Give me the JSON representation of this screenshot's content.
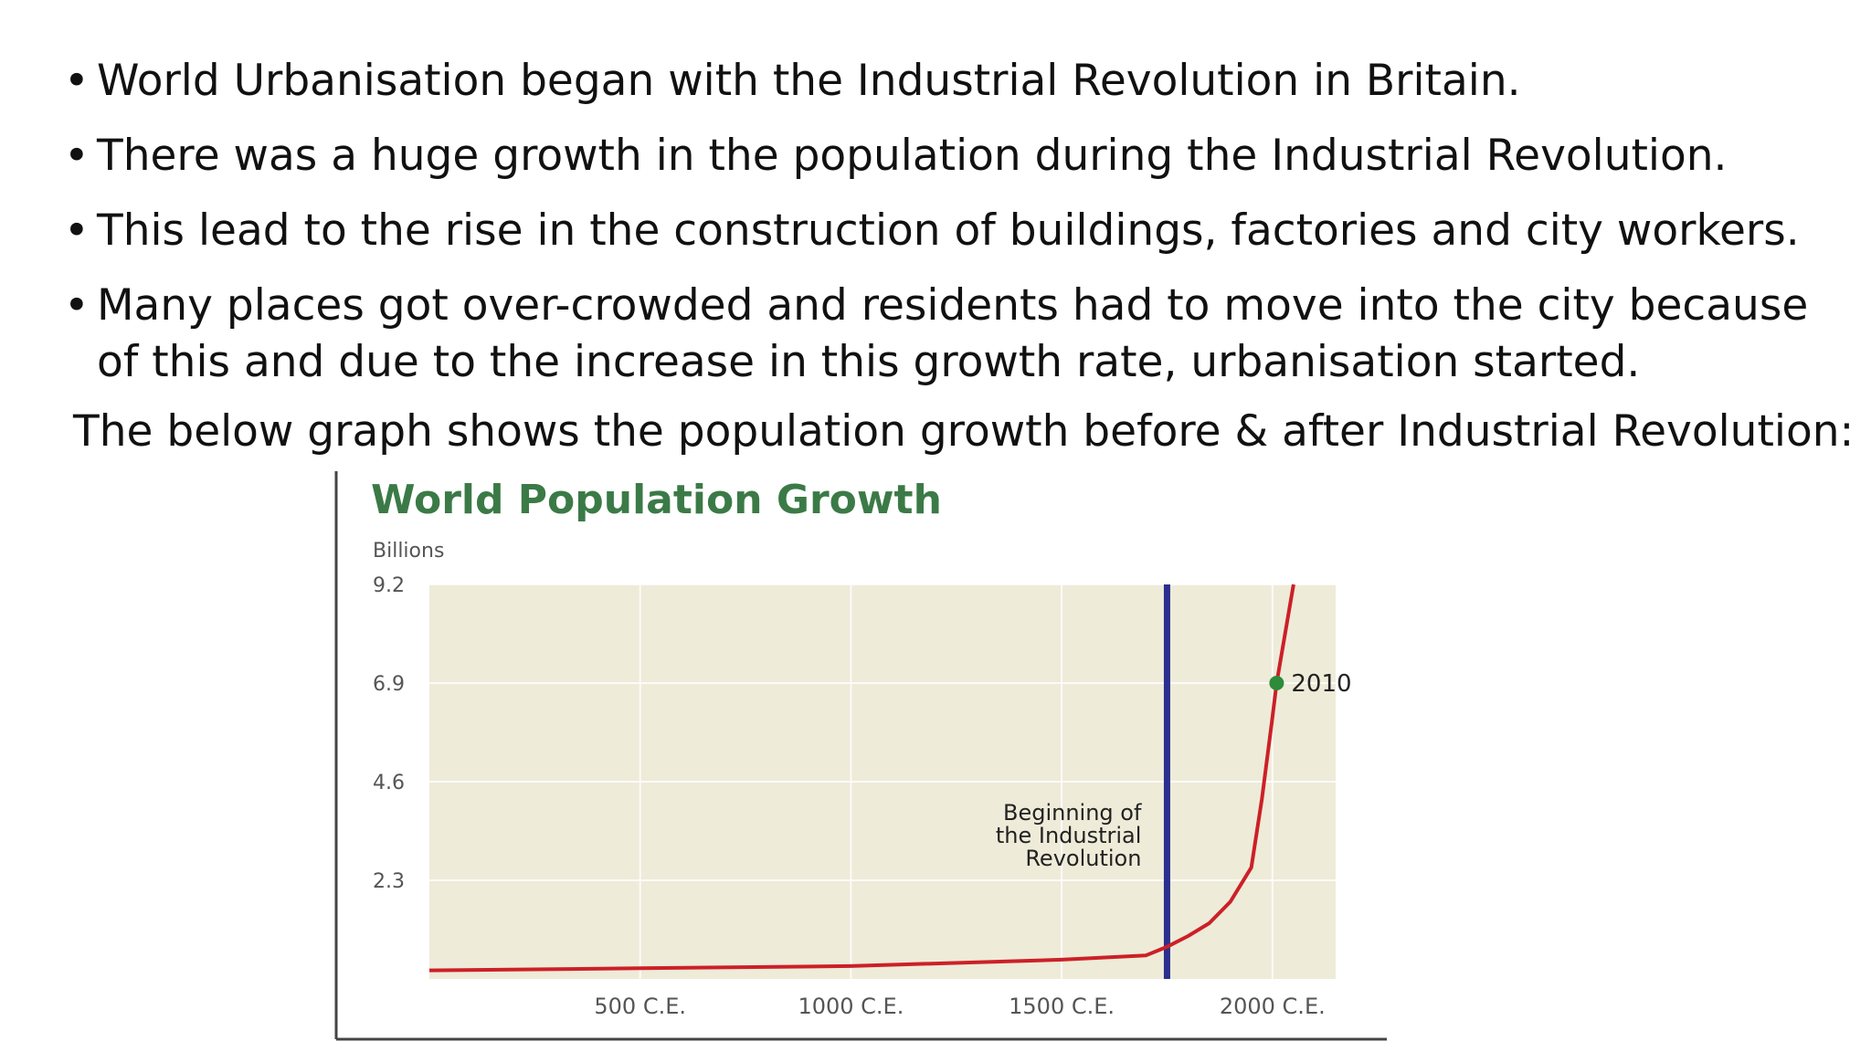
{
  "slide": {
    "bullets": [
      "World Urbanisation began with the Industrial Revolution in Britain.",
      "There was a huge growth in the population during the Industrial Revolution.",
      "This lead to the rise in the construction of buildings, factories and city workers.",
      " Many places got over-crowded and residents had to move into the city because of this and due to the increase in this growth rate, urbanisation started."
    ],
    "lead_text": "The below graph shows the population growth before & after Industrial Revolution:"
  },
  "chart_data": {
    "type": "line",
    "title": "World Population Growth",
    "ylabel": "Billions",
    "xlabel": "",
    "ylim": [
      0,
      9.2
    ],
    "xlim": [
      0,
      2150
    ],
    "yticks": [
      {
        "value": 2.3,
        "label": "2.3"
      },
      {
        "value": 4.6,
        "label": "4.6"
      },
      {
        "value": 6.9,
        "label": "6.9"
      },
      {
        "value": 9.2,
        "label": "9.2"
      }
    ],
    "xticks": [
      {
        "value": 500,
        "label": "500 C.E."
      },
      {
        "value": 1000,
        "label": "1000 C.E."
      },
      {
        "value": 1500,
        "label": "1500 C.E."
      },
      {
        "value": 2000,
        "label": "2000 C.E."
      }
    ],
    "grid": true,
    "series": [
      {
        "color": "#cc2027",
        "x": [
          0,
          500,
          1000,
          1500,
          1700,
          1750,
          1800,
          1850,
          1900,
          1950,
          1975,
          2000,
          2010,
          2050
        ],
        "y": [
          0.2,
          0.25,
          0.3,
          0.45,
          0.55,
          0.75,
          1.0,
          1.3,
          1.8,
          2.6,
          4.2,
          6.1,
          6.9,
          9.2
        ]
      }
    ],
    "reference_line": {
      "x": 1750,
      "label_lines": [
        "Beginning of",
        "the Industrial",
        "Revolution"
      ],
      "color": "#2b2f8f"
    },
    "annotation_point": {
      "x": 2010,
      "y": 6.9,
      "label": "2010",
      "color": "#2e8b3a"
    },
    "colors": {
      "plot_bg": "#eeebd9",
      "title": "#3b7a47",
      "axis_frame": "#444444",
      "tick_text": "#555555"
    }
  }
}
